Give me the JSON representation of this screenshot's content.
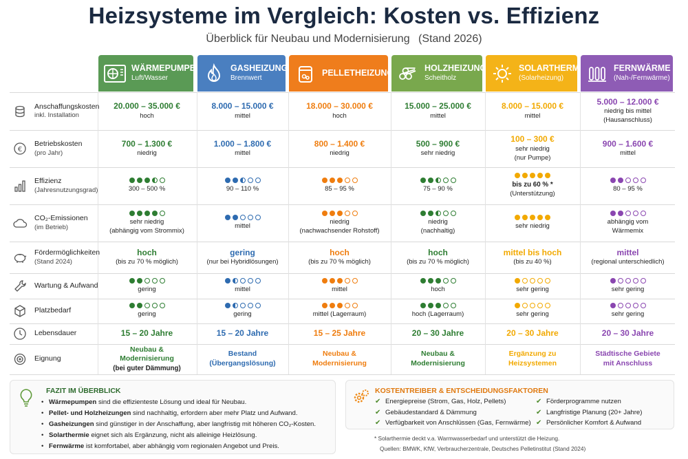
{
  "title": "Heizsysteme im Vergleich: Kosten vs. Effizienz",
  "subtitle": "Überblick für Neubau und Modernisierung",
  "stand": "(Stand 2026)",
  "colors": {
    "green": "#2e7d32",
    "blue": "#2e6bb0",
    "orange": "#ef7d0f",
    "lightgreen": "#2e7d32",
    "yellow": "#f2a900",
    "purple": "#8a46b0"
  },
  "columns": [
    {
      "name": "WÄRMEPUMPE",
      "sub": "Luft/Wasser",
      "icon": "heat-pump-icon",
      "header_color": "#5a9a55",
      "text_color": "#2e7d32"
    },
    {
      "name": "GASHEIZUNG",
      "sub": "Brennwert",
      "icon": "flame-icon",
      "header_color": "#4a7fc0",
      "text_color": "#2e6bb0"
    },
    {
      "name": "PELLETHEIZUNG",
      "sub": "",
      "icon": "pellet-bag-icon",
      "header_color": "#ef7d1c",
      "text_color": "#ef7d0f"
    },
    {
      "name": "HOLZHEIZUNG",
      "sub": "Scheitholz",
      "icon": "firewood-icon",
      "header_color": "#79a84d",
      "text_color": "#2e7d32"
    },
    {
      "name": "SOLARTHERMIE",
      "sub": "(Solarheizung)",
      "icon": "sun-icon",
      "header_color": "#f4b318",
      "text_color": "#f2a900"
    },
    {
      "name": "FERNWÄRME",
      "sub": "(Nah-/Fernwärme)",
      "icon": "radiator-icon",
      "header_color": "#8e5cb5",
      "text_color": "#8a46b0"
    }
  ],
  "rows": [
    {
      "label": "Anschaffungskosten",
      "sub": "inkl. Installation",
      "icon": "coins-icon",
      "cells": [
        {
          "main": "20.000 – 35.000 €",
          "sub": [
            "hoch"
          ]
        },
        {
          "main": "8.000 – 15.000 €",
          "sub": [
            "mittel"
          ]
        },
        {
          "main": "18.000 – 30.000 €",
          "sub": [
            "hoch"
          ]
        },
        {
          "main": "15.000 – 25.000 €",
          "sub": [
            "mittel"
          ]
        },
        {
          "main": "8.000 – 15.000 €",
          "sub": [
            "mittel"
          ]
        },
        {
          "main": "5.000 – 12.000 €",
          "sub": [
            "niedrig bis mittel",
            "(Hausanschluss)"
          ]
        }
      ]
    },
    {
      "label": "Betriebskosten",
      "sub": "(pro Jahr)",
      "icon": "euro-coin-icon",
      "cells": [
        {
          "main": "700 – 1.300 €",
          "sub": [
            "niedrig"
          ]
        },
        {
          "main": "1.000 – 1.800 €",
          "sub": [
            "mittel"
          ]
        },
        {
          "main": "800 – 1.400 €",
          "sub": [
            "niedrig"
          ]
        },
        {
          "main": "500 – 900 €",
          "sub": [
            "sehr niedrig"
          ]
        },
        {
          "main": "100 – 300 €",
          "sub": [
            "sehr niedrig",
            "(nur Pumpe)"
          ]
        },
        {
          "main": "900 – 1.600 €",
          "sub": [
            "mittel"
          ]
        }
      ]
    },
    {
      "label": "Effizienz",
      "sub": "(Jahresnutzungsgrad)",
      "icon": "bar-chart-icon",
      "cells": [
        {
          "rating": 3.5,
          "sub": [
            "300 – 500 %"
          ]
        },
        {
          "rating": 2.5,
          "sub": [
            "90 – 110 %"
          ]
        },
        {
          "rating": 3,
          "sub": [
            "85 – 95 %"
          ]
        },
        {
          "rating": 2.5,
          "sub": [
            "75 – 90 %"
          ]
        },
        {
          "rating": 5,
          "sub": [
            "bis zu 60 % *",
            "(Unterstützung)"
          ],
          "bold_first": true
        },
        {
          "rating": 2,
          "sub": [
            "80 – 95 %"
          ]
        }
      ]
    },
    {
      "label": "CO₂-Emissionen",
      "sub": "(im Betrieb)",
      "icon": "co2-cloud-icon",
      "cells": [
        {
          "rating": 4,
          "sub": [
            "sehr niedrig",
            "(abhängig vom Strommix)"
          ]
        },
        {
          "rating": 2,
          "sub": [
            "mittel"
          ]
        },
        {
          "rating": 3,
          "sub": [
            "niedrig",
            "(nachwachsender Rohstoff)"
          ]
        },
        {
          "rating": 2.5,
          "sub": [
            "niedrig",
            "(nachhaltig)"
          ]
        },
        {
          "rating": 5,
          "sub": [
            "sehr niedrig"
          ]
        },
        {
          "rating": 2,
          "sub": [
            "abhängig vom",
            "Wärmemix"
          ]
        }
      ]
    },
    {
      "label": "Fördermöglichkeiten",
      "sub": "(Stand 2024)",
      "icon": "piggy-bank-icon",
      "cells": [
        {
          "main": "hoch",
          "sub": [
            "(bis zu 70 % möglich)"
          ]
        },
        {
          "main": "gering",
          "sub": [
            "(nur bei Hybridlösungen)"
          ]
        },
        {
          "main": "hoch",
          "sub": [
            "(bis zu 70 % möglich)"
          ]
        },
        {
          "main": "hoch",
          "sub": [
            "(bis zu 70 % möglich)"
          ]
        },
        {
          "main": "mittel bis hoch",
          "sub": [
            "(bis zu 40 %)"
          ]
        },
        {
          "main": "mittel",
          "sub": [
            "(regional unterschiedlich)"
          ]
        }
      ]
    },
    {
      "label": "Wartung & Aufwand",
      "sub": "",
      "icon": "wrench-icon",
      "cells": [
        {
          "rating": 2,
          "sub": [
            "gering"
          ]
        },
        {
          "rating": 1.5,
          "sub": [
            "mittel"
          ]
        },
        {
          "rating": 3,
          "sub": [
            "mittel"
          ]
        },
        {
          "rating": 3,
          "sub": [
            "hoch"
          ]
        },
        {
          "rating": 1,
          "sub": [
            "sehr gering"
          ]
        },
        {
          "rating": 1,
          "sub": [
            "sehr gering"
          ]
        }
      ]
    },
    {
      "label": "Platzbedarf",
      "sub": "",
      "icon": "box-icon",
      "cells": [
        {
          "rating": 2,
          "sub": [
            "gering"
          ]
        },
        {
          "rating": 1.5,
          "sub": [
            "gering"
          ]
        },
        {
          "rating": 3,
          "sub": [
            "mittel (Lagerraum)"
          ]
        },
        {
          "rating": 3,
          "sub": [
            "hoch (Lagerraum)"
          ]
        },
        {
          "rating": 1,
          "sub": [
            "sehr gering"
          ]
        },
        {
          "rating": 1,
          "sub": [
            "sehr gering"
          ]
        }
      ]
    },
    {
      "label": "Lebensdauer",
      "sub": "",
      "icon": "clock-icon",
      "cells": [
        {
          "main": "15 – 20 Jahre",
          "sub": []
        },
        {
          "main": "15 – 20 Jahre",
          "sub": []
        },
        {
          "main": "15 – 25 Jahre",
          "sub": []
        },
        {
          "main": "20 – 30 Jahre",
          "sub": []
        },
        {
          "main": "20 – 30 Jahre",
          "sub": []
        },
        {
          "main": "20 – 30 Jahre",
          "sub": []
        }
      ]
    },
    {
      "label": "Eignung",
      "sub": "",
      "icon": "target-icon",
      "cells": [
        {
          "main": "Neubau &\nModernisierung",
          "sub": [
            "(bei guter Dämmung)"
          ],
          "sub_bold": true
        },
        {
          "main": "Bestand\n(Übergangslösung)",
          "sub": []
        },
        {
          "main": "Neubau &\nModernisierung",
          "sub": []
        },
        {
          "main": "Neubau &\nModernisierung",
          "sub": []
        },
        {
          "main": "Ergänzung zu\nHeizsystemen",
          "sub": []
        },
        {
          "main": "Städtische Gebiete\nmit Anschluss",
          "sub": []
        }
      ]
    }
  ],
  "fazit": {
    "title": "FAZIT IM ÜBERBLICK",
    "items": [
      {
        "bold": "Wärmepumpen",
        "rest": " sind die effizienteste Lösung und ideal für Neubau."
      },
      {
        "bold": "Pellet- und Holzheizungen",
        "rest": " sind nachhaltig, erfordern aber mehr Platz und Aufwand."
      },
      {
        "bold": "Gasheizungen",
        "rest": " sind günstiger in der Anschaffung, aber langfristig mit höheren CO₂-Kosten."
      },
      {
        "bold": "Solarthermie",
        "rest": " eignet sich als Ergänzung, nicht als alleinige Heizlösung."
      },
      {
        "bold": "Fernwärme",
        "rest": " ist komfortabel, aber abhängig vom regionalen Angebot und Preis."
      }
    ]
  },
  "kosten": {
    "title": "KOSTENTREIBER & ENTSCHEIDUNGSFAKTOREN",
    "left": [
      "Energiepreise (Strom, Gas, Holz, Pellets)",
      "Gebäudestandard & Dämmung",
      "Verfügbarkeit von Anschlüssen (Gas, Fernwärme)"
    ],
    "right": [
      "Förderprogramme nutzen",
      "Langfristige Planung (20+ Jahre)",
      "Persönlicher Komfort & Aufwand"
    ],
    "footnote": "* Solarthermie deckt v.a. Warmwasserbedarf und unterstützt die Heizung.",
    "sources": "Quellen: BMWK, KfW, Verbraucherzentrale, Deutsches Pelletinstitut (Stand 2024)"
  }
}
